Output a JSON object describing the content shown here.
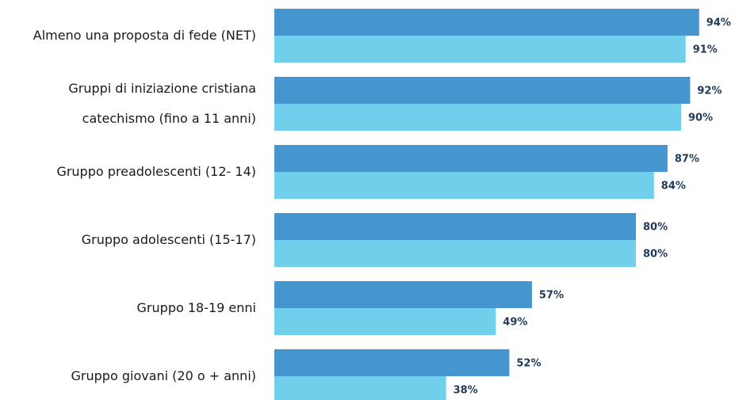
{
  "chart_data": {
    "type": "bar",
    "orientation": "horizontal",
    "categories": [
      "Almeno una proposta di fede (NET)",
      "Gruppi di iniziazione cristiana\ncatechismo (fino a 11 anni)",
      "Gruppo preadolescenti (12- 14)",
      "Gruppo adolescenti (15-17)",
      "Gruppo 18-19 enni",
      "Gruppo giovani (20 o + anni)"
    ],
    "series": [
      {
        "color": "#4596cf",
        "values": [
          94,
          92,
          87,
          80,
          57,
          52
        ],
        "value_labels": [
          "94%",
          "92%",
          "87%",
          "80%",
          "57%",
          "52%"
        ]
      },
      {
        "color": "#70cfeb",
        "values": [
          91,
          90,
          84,
          80,
          49,
          38
        ],
        "value_labels": [
          "91%",
          "90%",
          "84%",
          "80%",
          "49%",
          "38%"
        ]
      }
    ],
    "xlim": [
      0,
      100
    ]
  }
}
